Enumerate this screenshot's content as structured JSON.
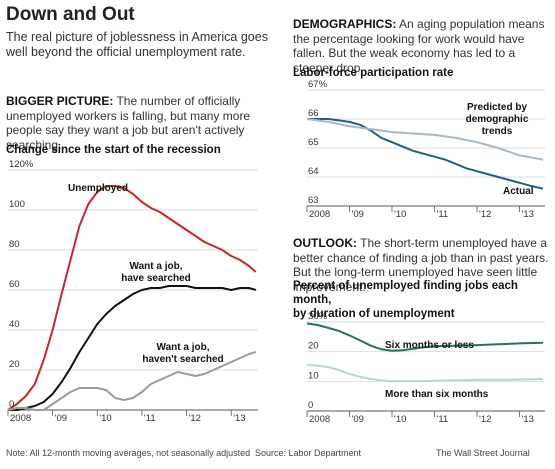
{
  "header": {
    "title": "Down and Out",
    "dek": "The real picture of joblessness in America goes well beyond the official unemployment rate."
  },
  "sections": {
    "bigger_picture": {
      "lead": "BIGGER PICTURE:",
      "text": " The number of officially unemployed workers is falling, but many more people say they want a job but aren't actively searching."
    },
    "demographics": {
      "lead": "DEMOGRAPHICS:",
      "text": " An aging population means the percentage looking for work would have fallen. But the weak economy has led to a steeper drop."
    },
    "outlook": {
      "lead": "OUTLOOK:",
      "text": " The short-term unemployed have a better chance of finding a job than in past years. But the long-term unemployed have seen little improvement."
    }
  },
  "footer": {
    "note": "Note: All 12-month moving averages, not seasonally adjusted",
    "source": "Source: Labor Department",
    "credit": "The Wall Street Journal"
  },
  "colors": {
    "red": "#c8262b",
    "black": "#111111",
    "gray": "#9b9b9b",
    "blue": "#1f5f8b",
    "lightblue": "#a8b9c6",
    "green": "#1f7a4e",
    "lightgreen": "#b7d8c3"
  },
  "chart_data": [
    {
      "id": "change",
      "type": "line",
      "title": "Change since the start of the recession",
      "x_ticks": [
        "2008",
        "'09",
        "'10",
        "'11",
        "'12",
        "'13"
      ],
      "y_ticks": [
        "0",
        "20",
        "40",
        "60",
        "80",
        "100",
        "120%"
      ],
      "xlim": [
        2008.0,
        2013.6
      ],
      "ylim": [
        0,
        120
      ],
      "series": [
        {
          "name": "Unemployed",
          "color": "#c8262b",
          "x": [
            2008.0,
            2008.2,
            2008.4,
            2008.6,
            2008.8,
            2009.0,
            2009.2,
            2009.4,
            2009.6,
            2009.8,
            2010.0,
            2010.2,
            2010.4,
            2010.6,
            2010.8,
            2011.0,
            2011.2,
            2011.4,
            2011.6,
            2011.8,
            2012.0,
            2012.2,
            2012.4,
            2012.6,
            2012.8,
            2013.0,
            2013.2,
            2013.4,
            2013.55
          ],
          "y": [
            0,
            3,
            7,
            13,
            25,
            40,
            58,
            75,
            92,
            103,
            109,
            112,
            112,
            111,
            108,
            104,
            101,
            99,
            96,
            93,
            90,
            87,
            84,
            82,
            80,
            77,
            75,
            72,
            69
          ]
        },
        {
          "name": "Want a job, have searched",
          "color": "#111111",
          "x": [
            2008.0,
            2008.2,
            2008.4,
            2008.6,
            2008.8,
            2009.0,
            2009.2,
            2009.4,
            2009.6,
            2009.8,
            2010.0,
            2010.2,
            2010.4,
            2010.6,
            2010.8,
            2011.0,
            2011.2,
            2011.4,
            2011.6,
            2011.8,
            2012.0,
            2012.2,
            2012.4,
            2012.6,
            2012.8,
            2013.0,
            2013.2,
            2013.4,
            2013.55
          ],
          "y": [
            0,
            0,
            1,
            2,
            4,
            8,
            14,
            21,
            29,
            36,
            43,
            48,
            52,
            55,
            58,
            60,
            61,
            61,
            62,
            62,
            62,
            61,
            61,
            61,
            61,
            60,
            61,
            61,
            60
          ]
        },
        {
          "name": "Want a job, haven't searched",
          "color": "#9b9b9b",
          "x": [
            2008.0,
            2008.2,
            2008.4,
            2008.6,
            2008.8,
            2009.0,
            2009.2,
            2009.4,
            2009.6,
            2009.8,
            2010.0,
            2010.2,
            2010.4,
            2010.6,
            2010.8,
            2011.0,
            2011.2,
            2011.4,
            2011.6,
            2011.8,
            2012.0,
            2012.2,
            2012.4,
            2012.6,
            2012.8,
            2013.0,
            2013.2,
            2013.4,
            2013.55
          ],
          "y": [
            0,
            1,
            1,
            0,
            0,
            3,
            6,
            9,
            11,
            11,
            11,
            10,
            6,
            5,
            6,
            9,
            13,
            15,
            17,
            19,
            18,
            17,
            18,
            20,
            22,
            24,
            26,
            28,
            29
          ]
        }
      ],
      "labels": {
        "unemployed": "Unemployed",
        "searched_1": "Want a job,",
        "searched_2": "have searched",
        "notsearched_1": "Want a job,",
        "notsearched_2": "haven't searched"
      }
    },
    {
      "id": "participation",
      "type": "line",
      "title": "Labor-force participation rate",
      "x_ticks": [
        "2008",
        "'09",
        "'10",
        "'11",
        "'12",
        "'13"
      ],
      "y_ticks": [
        "63",
        "64",
        "65",
        "66",
        "67%"
      ],
      "xlim": [
        2008.0,
        2013.6
      ],
      "ylim": [
        63,
        67
      ],
      "series": [
        {
          "name": "Actual",
          "color": "#1f5f8b",
          "x": [
            2008.0,
            2008.25,
            2008.5,
            2008.75,
            2009.0,
            2009.25,
            2009.5,
            2009.75,
            2010.0,
            2010.25,
            2010.5,
            2010.75,
            2011.0,
            2011.25,
            2011.5,
            2011.75,
            2012.0,
            2012.25,
            2012.5,
            2012.75,
            2013.0,
            2013.25,
            2013.55
          ],
          "y": [
            66.0,
            66.0,
            66.0,
            65.95,
            65.9,
            65.8,
            65.6,
            65.35,
            65.2,
            65.05,
            64.9,
            64.8,
            64.7,
            64.6,
            64.45,
            64.3,
            64.2,
            64.1,
            64.0,
            63.9,
            63.8,
            63.7,
            63.6
          ]
        },
        {
          "name": "Predicted by demographic trends",
          "color": "#a8b9c6",
          "x": [
            2008.0,
            2008.5,
            2009.0,
            2009.5,
            2010.0,
            2010.5,
            2011.0,
            2011.5,
            2012.0,
            2012.5,
            2013.0,
            2013.55
          ],
          "y": [
            66.0,
            65.9,
            65.75,
            65.65,
            65.55,
            65.5,
            65.45,
            65.35,
            65.2,
            65.0,
            64.75,
            64.6
          ]
        }
      ],
      "labels": {
        "predicted_1": "Predicted by",
        "predicted_2": "demographic",
        "predicted_3": "trends",
        "actual": "Actual"
      }
    },
    {
      "id": "finding",
      "type": "line",
      "title": "Percent of unemployed finding jobs each month, by duration of unemployment",
      "title_line1": "Percent of unemployed finding jobs each month,",
      "title_line2": "by duration of unemployment",
      "x_ticks": [
        "2008",
        "'09",
        "'10",
        "'11",
        "'12",
        "'13"
      ],
      "y_ticks": [
        "0",
        "10",
        "20",
        "30%"
      ],
      "xlim": [
        2008.0,
        2013.6
      ],
      "ylim": [
        0,
        30
      ],
      "series": [
        {
          "name": "Six months or less",
          "color": "#1f7a4e",
          "x": [
            2008.0,
            2008.25,
            2008.5,
            2008.75,
            2009.0,
            2009.25,
            2009.5,
            2009.75,
            2010.0,
            2010.25,
            2010.5,
            2010.75,
            2011.0,
            2011.5,
            2012.0,
            2012.5,
            2013.0,
            2013.55
          ],
          "y": [
            29.5,
            29.0,
            28.0,
            27.0,
            25.5,
            23.8,
            22.0,
            20.8,
            20.3,
            20.5,
            21.0,
            21.5,
            21.8,
            22.0,
            22.2,
            22.5,
            22.8,
            23.0
          ]
        },
        {
          "name": "More than six months",
          "color": "#b7d8c3",
          "x": [
            2008.0,
            2008.25,
            2008.5,
            2008.75,
            2009.0,
            2009.25,
            2009.5,
            2009.75,
            2010.0,
            2010.5,
            2011.0,
            2011.5,
            2012.0,
            2012.5,
            2013.0,
            2013.55
          ],
          "y": [
            15.5,
            15.3,
            14.8,
            13.8,
            12.5,
            11.5,
            10.8,
            10.3,
            10.0,
            10.0,
            10.2,
            10.3,
            10.5,
            10.5,
            10.6,
            10.8
          ]
        }
      ],
      "labels": {
        "short": "Six months or less",
        "long": "More than six months"
      }
    }
  ]
}
